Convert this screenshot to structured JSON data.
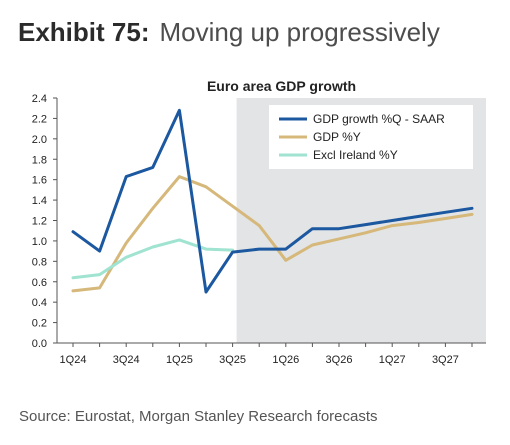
{
  "exhibit": {
    "number": "Exhibit 75:",
    "title": "Moving up progressively"
  },
  "source": "Source: Eurostat, Morgan Stanley Research forecasts",
  "chart_data": {
    "type": "line",
    "title": "Euro area GDP growth",
    "xlabel": "",
    "ylabel": "",
    "categories": [
      "1Q24",
      "2Q24",
      "3Q24",
      "4Q24",
      "1Q25",
      "2Q25",
      "3Q25",
      "4Q25",
      "1Q26",
      "2Q26",
      "3Q26",
      "4Q26",
      "1Q27",
      "2Q27",
      "3Q27",
      "4Q27"
    ],
    "x_tick_labels": [
      "1Q24",
      "3Q24",
      "1Q25",
      "3Q25",
      "1Q26",
      "3Q26",
      "1Q27",
      "3Q27"
    ],
    "ylim": [
      0.0,
      2.4
    ],
    "y_tick_labels": [
      "0.0",
      "0.2",
      "0.4",
      "0.6",
      "0.8",
      "1.0",
      "1.2",
      "1.4",
      "1.6",
      "1.8",
      "2.0",
      "2.2",
      "2.4"
    ],
    "grid": false,
    "legend_position": "top-right",
    "forecast_shading_start": "3Q25",
    "forecast_shading_color": "#e3e4e6",
    "series": [
      {
        "name": "GDP growth %Q - SAAR",
        "color": "#1b58a0",
        "points": [
          [
            0,
            1.09
          ],
          [
            1,
            0.9
          ],
          [
            2,
            1.63
          ],
          [
            3,
            1.72
          ],
          [
            4,
            2.28
          ],
          [
            5,
            0.5
          ],
          [
            6,
            0.89
          ],
          [
            7,
            0.92
          ],
          [
            8,
            0.92
          ],
          [
            9,
            1.12
          ],
          [
            10,
            1.12
          ],
          [
            11,
            1.16
          ],
          [
            12,
            1.2
          ],
          [
            13,
            1.24
          ],
          [
            14,
            1.28
          ],
          [
            15,
            1.32
          ]
        ]
      },
      {
        "name": "GDP %Y",
        "color": "#d5b87a",
        "points": [
          [
            0,
            0.51
          ],
          [
            1,
            0.54
          ],
          [
            2,
            0.98
          ],
          [
            3,
            1.32
          ],
          [
            4,
            1.63
          ],
          [
            5,
            1.53
          ],
          [
            6,
            1.34
          ],
          [
            7,
            1.15
          ],
          [
            8,
            0.81
          ],
          [
            9,
            0.96
          ],
          [
            10,
            1.02
          ],
          [
            11,
            1.08
          ],
          [
            12,
            1.15
          ],
          [
            13,
            1.18
          ],
          [
            14,
            1.22
          ],
          [
            15,
            1.26
          ]
        ]
      },
      {
        "name": "Excl Ireland %Y",
        "color": "#9fe3d0",
        "points": [
          [
            0,
            0.64
          ],
          [
            1,
            0.67
          ],
          [
            2,
            0.84
          ],
          [
            3,
            0.94
          ],
          [
            4,
            1.01
          ],
          [
            5,
            0.92
          ],
          [
            6,
            0.91
          ]
        ]
      }
    ]
  }
}
